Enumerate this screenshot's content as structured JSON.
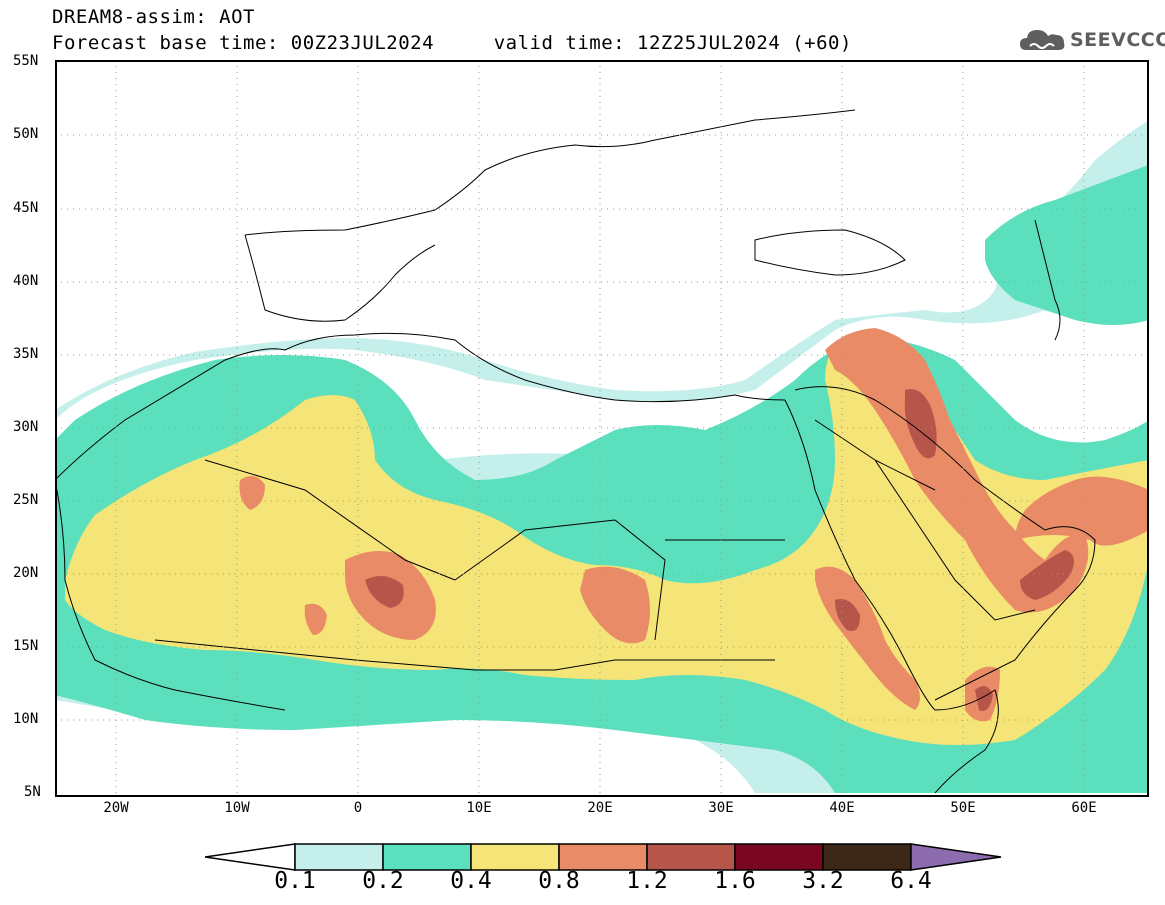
{
  "title": {
    "line1": "DREAM8-assim: AOT",
    "line2": "Forecast base time: 00Z23JUL2024     valid time: 12Z25JUL2024 (+60)"
  },
  "logo": {
    "text": "SEEVCCC",
    "icon": "cloud-icon"
  },
  "map": {
    "lat_labels": [
      "55N",
      "50N",
      "45N",
      "40N",
      "35N",
      "30N",
      "25N",
      "20N",
      "15N",
      "10N",
      "5N"
    ],
    "lon_labels": [
      "20W",
      "10W",
      "0",
      "10E",
      "20E",
      "30E",
      "40E",
      "50E",
      "60E"
    ],
    "grid": "dotted"
  },
  "legend": {
    "labels": [
      "0.1",
      "0.2",
      "0.4",
      "0.8",
      "1.2",
      "1.6",
      "3.2",
      "6.4"
    ],
    "colors": [
      "#ffffff",
      "#c4efea",
      "#5cdfbd",
      "#f5e477",
      "#e88b66",
      "#b6564a",
      "#7a0622",
      "#3d2716",
      "#8c6cae"
    ]
  }
}
